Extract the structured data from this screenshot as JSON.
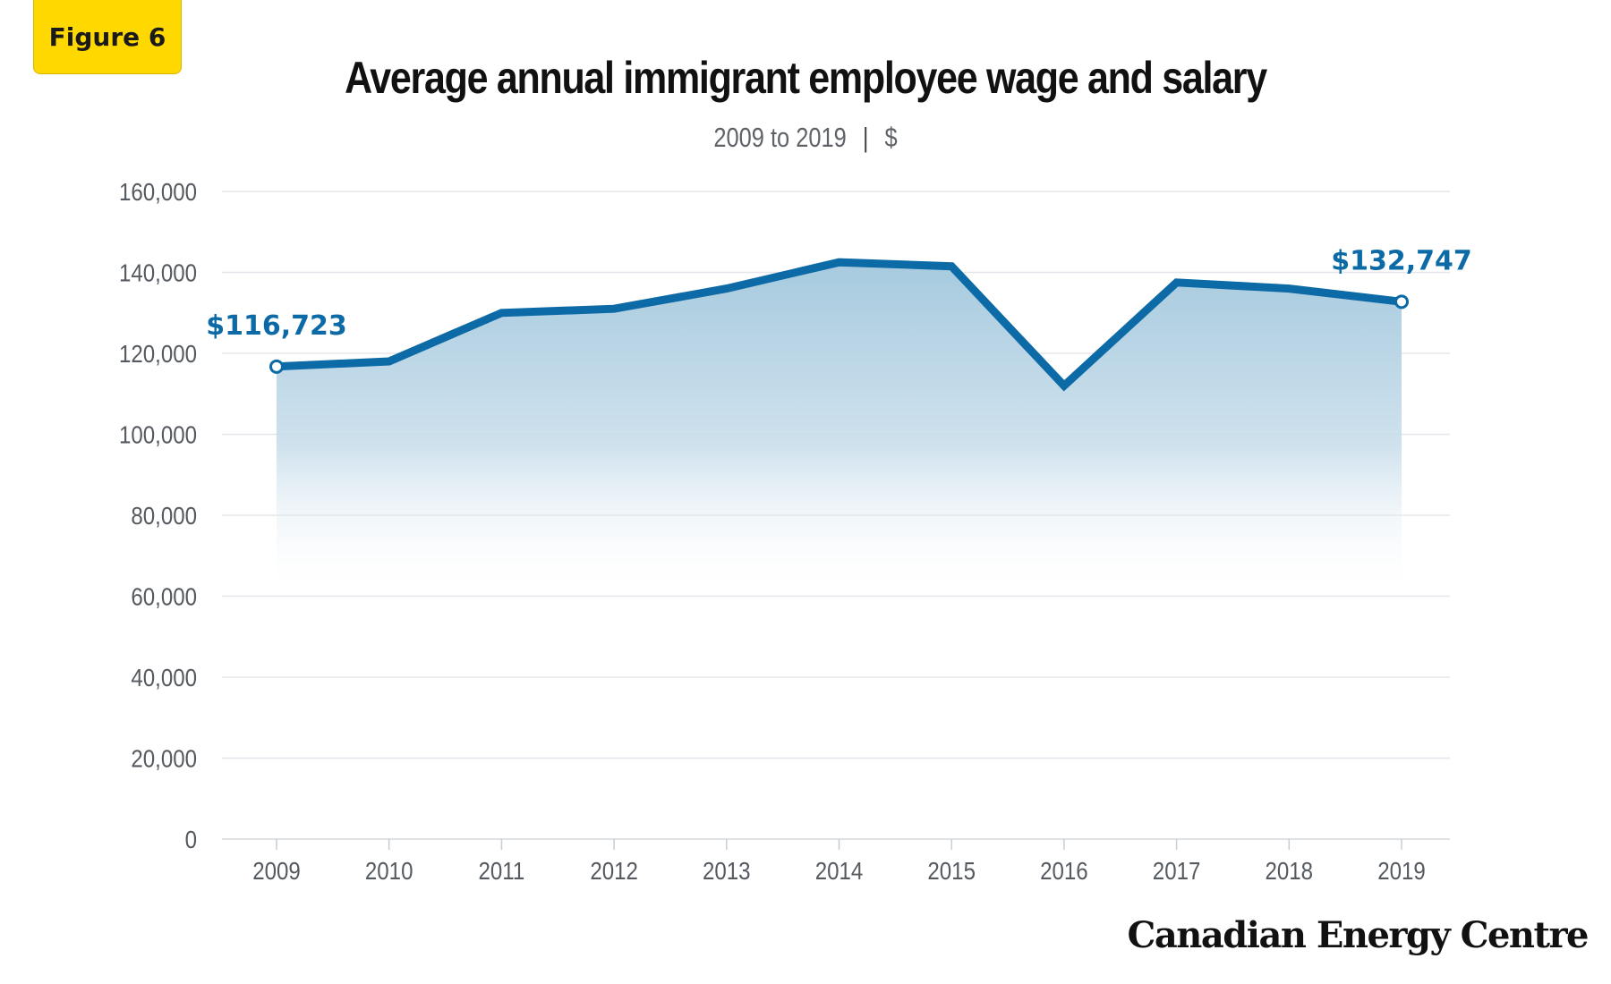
{
  "figure_label": "Figure 6",
  "brand": "Canadian Energy Centre",
  "colors": {
    "accent_yellow": "#ffd800",
    "series_line": "#0c6aa6",
    "area_fill_top": "#a6cade",
    "grid": "#e3e6ea",
    "tick_text": "#555a60"
  },
  "chart_data": {
    "type": "area",
    "title": "Average annual immigrant employee wage and salary",
    "subtitle_range": "2009 to 2019",
    "subtitle_unit": "$",
    "xlabel": "",
    "ylabel": "",
    "ylim": [
      0,
      160000
    ],
    "grid": true,
    "legend": "none",
    "categories": [
      "2009",
      "2010",
      "2011",
      "2012",
      "2013",
      "2014",
      "2015",
      "2016",
      "2017",
      "2018",
      "2019"
    ],
    "series": [
      {
        "values": [
          116723,
          118000,
          130000,
          131000,
          136000,
          142500,
          141500,
          112000,
          137500,
          136000,
          132747
        ]
      }
    ],
    "y_ticks": [
      "0",
      "20,000",
      "40,000",
      "60,000",
      "80,000",
      "100,000",
      "120,000",
      "140,000",
      "160,000"
    ],
    "y_tick_values": [
      0,
      20000,
      40000,
      60000,
      80000,
      100000,
      120000,
      140000,
      160000
    ],
    "annotations": [
      {
        "category": "2009",
        "text": "$116,723"
      },
      {
        "category": "2019",
        "text": "$132,747"
      }
    ]
  }
}
